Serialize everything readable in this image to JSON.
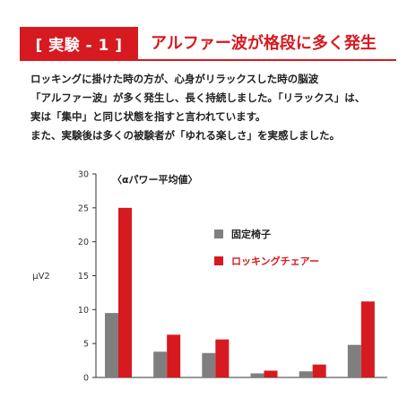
{
  "header": {
    "badge": "[ 実験 - 1 ]",
    "headline": "アルファー波が格段に多く発生"
  },
  "body_lines": [
    "ロッキングに掛けた時の方が、心身がリラックスした時の脳波",
    "「アルファー波」が多く発生し、長く持続しました。「リラックス」は、",
    "実は「集中」と同じ状態を指すと言われています。",
    "また、実験後は多くの被験者が「ゆれる楽しさ」を実感しました。"
  ],
  "colors": {
    "accent": "#d71920",
    "gray_series": "#7f7f7f",
    "red_series": "#d71920"
  },
  "chart_data": {
    "type": "bar",
    "title": "〈αパワー平均値〉",
    "ylabel": "μV2",
    "xlabel": "",
    "ylim": [
      0,
      30
    ],
    "yticks": [
      0,
      5,
      10,
      15,
      20,
      25,
      30
    ],
    "categories": [
      "",
      "",
      "",
      "",
      "",
      ""
    ],
    "series": [
      {
        "name": "固定椅子",
        "color": "#7f7f7f",
        "values": [
          9.5,
          3.8,
          3.6,
          0.6,
          0.9,
          4.8
        ]
      },
      {
        "name": "ロッキングチェアー",
        "color": "#d71920",
        "values": [
          25.0,
          6.3,
          5.6,
          1.0,
          1.9,
          11.2
        ]
      }
    ],
    "legend_position": "right",
    "grid": false
  }
}
